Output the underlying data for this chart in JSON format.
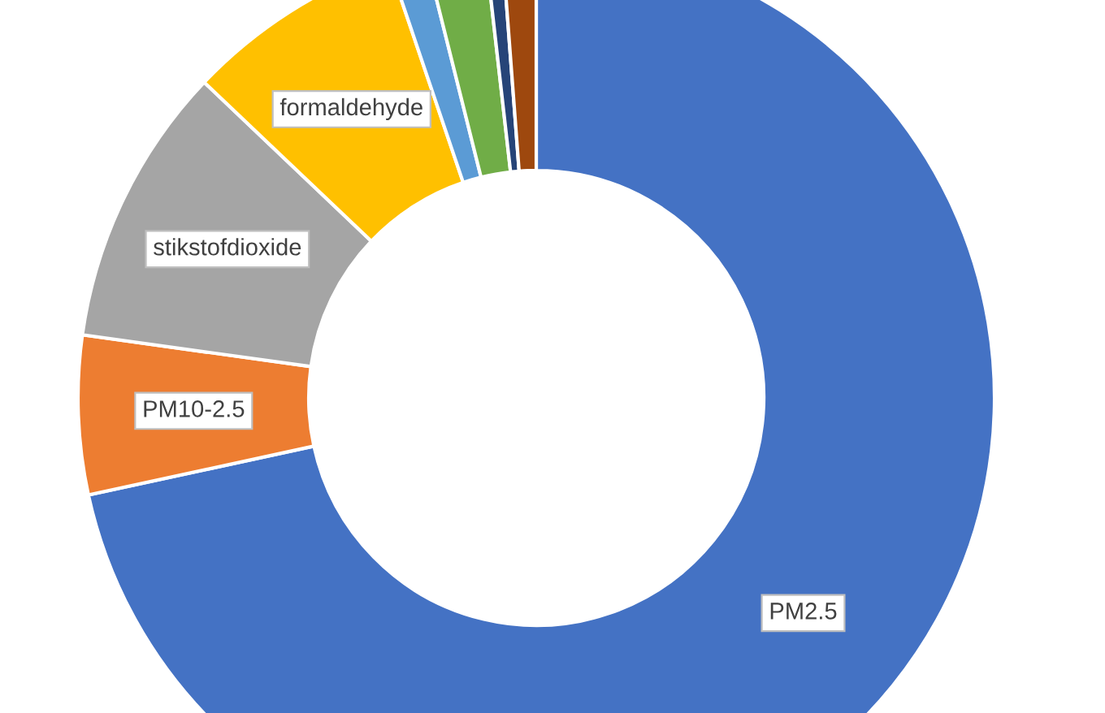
{
  "chart_data": {
    "type": "donut",
    "categories": [
      "PM2.5",
      "PM10-2.5",
      "stikstofdioxide",
      "formaldehyde",
      null,
      null,
      null,
      null
    ],
    "values": [
      71.6,
      5.6,
      9.9,
      7.7,
      1.3,
      2.1,
      0.6,
      1.2
    ],
    "colors": [
      "#4472c4",
      "#ed7d31",
      "#a5a5a5",
      "#ffc000",
      "#5b9bd5",
      "#70ad47",
      "#264478",
      "#9e480e"
    ],
    "legend": false
  }
}
